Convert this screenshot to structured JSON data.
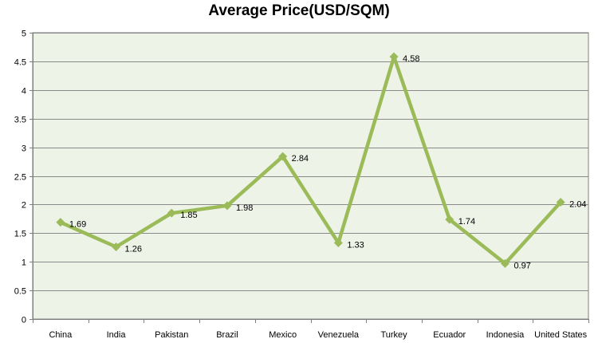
{
  "chart_data": {
    "type": "line",
    "title": "Average Price(USD/SQM)",
    "xlabel": "",
    "ylabel": "",
    "categories": [
      "China",
      "India",
      "Pakistan",
      "Brazil",
      "Mexico",
      "Venezuela",
      "Turkey",
      "Ecuador",
      "Indonesia",
      "United States"
    ],
    "series": [
      {
        "values": [
          1.69,
          1.26,
          1.85,
          1.98,
          2.84,
          1.33,
          4.58,
          1.74,
          0.97,
          2.04
        ]
      }
    ],
    "data_labels": [
      "1.69",
      "1.26",
      "1.85",
      "1.98",
      "2.84",
      "1.33",
      "4.58",
      "1.74",
      "0.97",
      "2.04"
    ],
    "ylim": [
      0,
      5
    ],
    "yticks": [
      0,
      0.5,
      1,
      1.5,
      2,
      2.5,
      3,
      3.5,
      4,
      4.5,
      5
    ],
    "ytick_labels": [
      "0",
      "0.5",
      "1",
      "1.5",
      "2",
      "2.5",
      "3",
      "3.5",
      "4",
      "4.5",
      "5"
    ],
    "grid": "horizontal",
    "legend": "none",
    "colors": {
      "line": "#9BBB59",
      "plot_background": "#EEF3E8",
      "gridline": "#8A8A8A",
      "axis": "#7F7F7F"
    }
  }
}
